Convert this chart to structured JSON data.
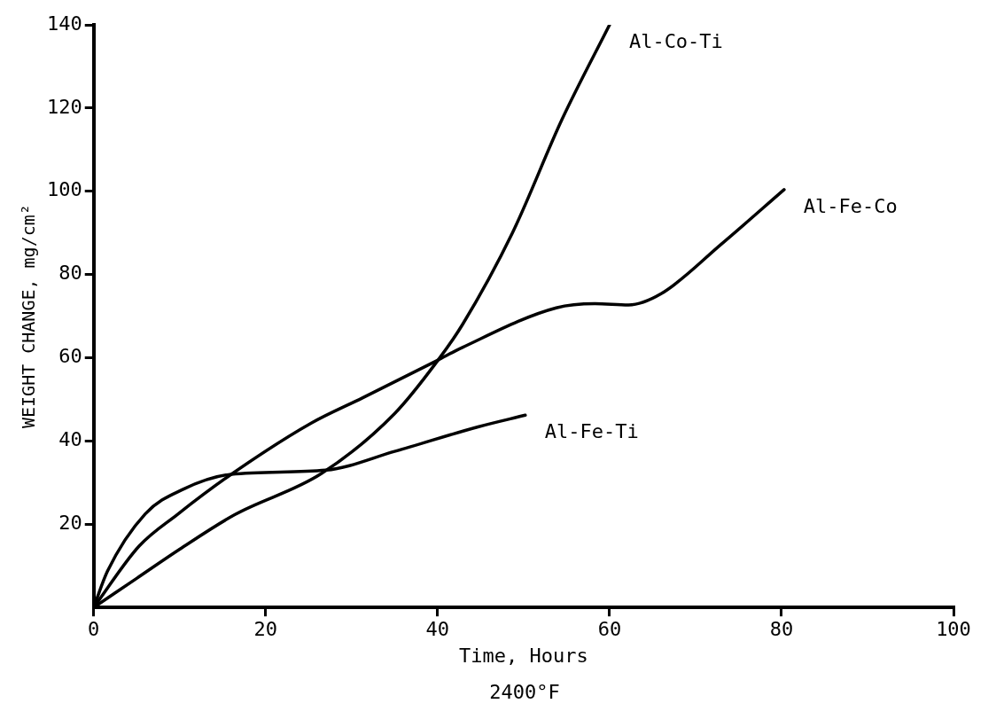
{
  "chart_data": {
    "type": "line",
    "xlabel": "Time, Hours",
    "ylabel": "WEIGHT CHANGE, mg/cm²",
    "annotations": [
      "2400°F"
    ],
    "xlim": [
      0,
      100
    ],
    "xticks": [
      0,
      20,
      40,
      60,
      80,
      100
    ],
    "ylim": [
      0,
      140
    ],
    "yticks": [
      20,
      40,
      60,
      80,
      100,
      120,
      140
    ],
    "grid": false,
    "legend": false,
    "marker": "none",
    "line_style": "solid",
    "series": [
      {
        "name": "Al-Co-Ti",
        "color": "#000000",
        "x": [
          0,
          5,
          10,
          16.4,
          26.5,
          35,
          40,
          42.9,
          48.7,
          54.5,
          60
        ],
        "values": [
          0,
          7,
          14,
          22.3,
          32.2,
          46.6,
          59.3,
          68,
          90,
          117.4,
          140
        ]
      },
      {
        "name": "Al-Fe-Co",
        "color": "#000000",
        "x": [
          0,
          5.3,
          9.7,
          16,
          25.3,
          31.3,
          39.9,
          42.9,
          53.8,
          58.3,
          62.2,
          66,
          73,
          80.3
        ],
        "values": [
          0,
          14.8,
          22.3,
          32,
          44.3,
          50.4,
          59.3,
          62.5,
          72,
          73,
          72.7,
          75.4,
          87.3,
          100.4
        ]
      },
      {
        "name": "Al-Fe-Ti",
        "color": "#000000",
        "x": [
          0,
          1.6,
          6,
          10.4,
          16,
          27,
          35,
          44.7,
          50.2
        ],
        "values": [
          0,
          8.7,
          22.5,
          28.4,
          32,
          33,
          37.5,
          43.4,
          46.2
        ]
      }
    ]
  }
}
